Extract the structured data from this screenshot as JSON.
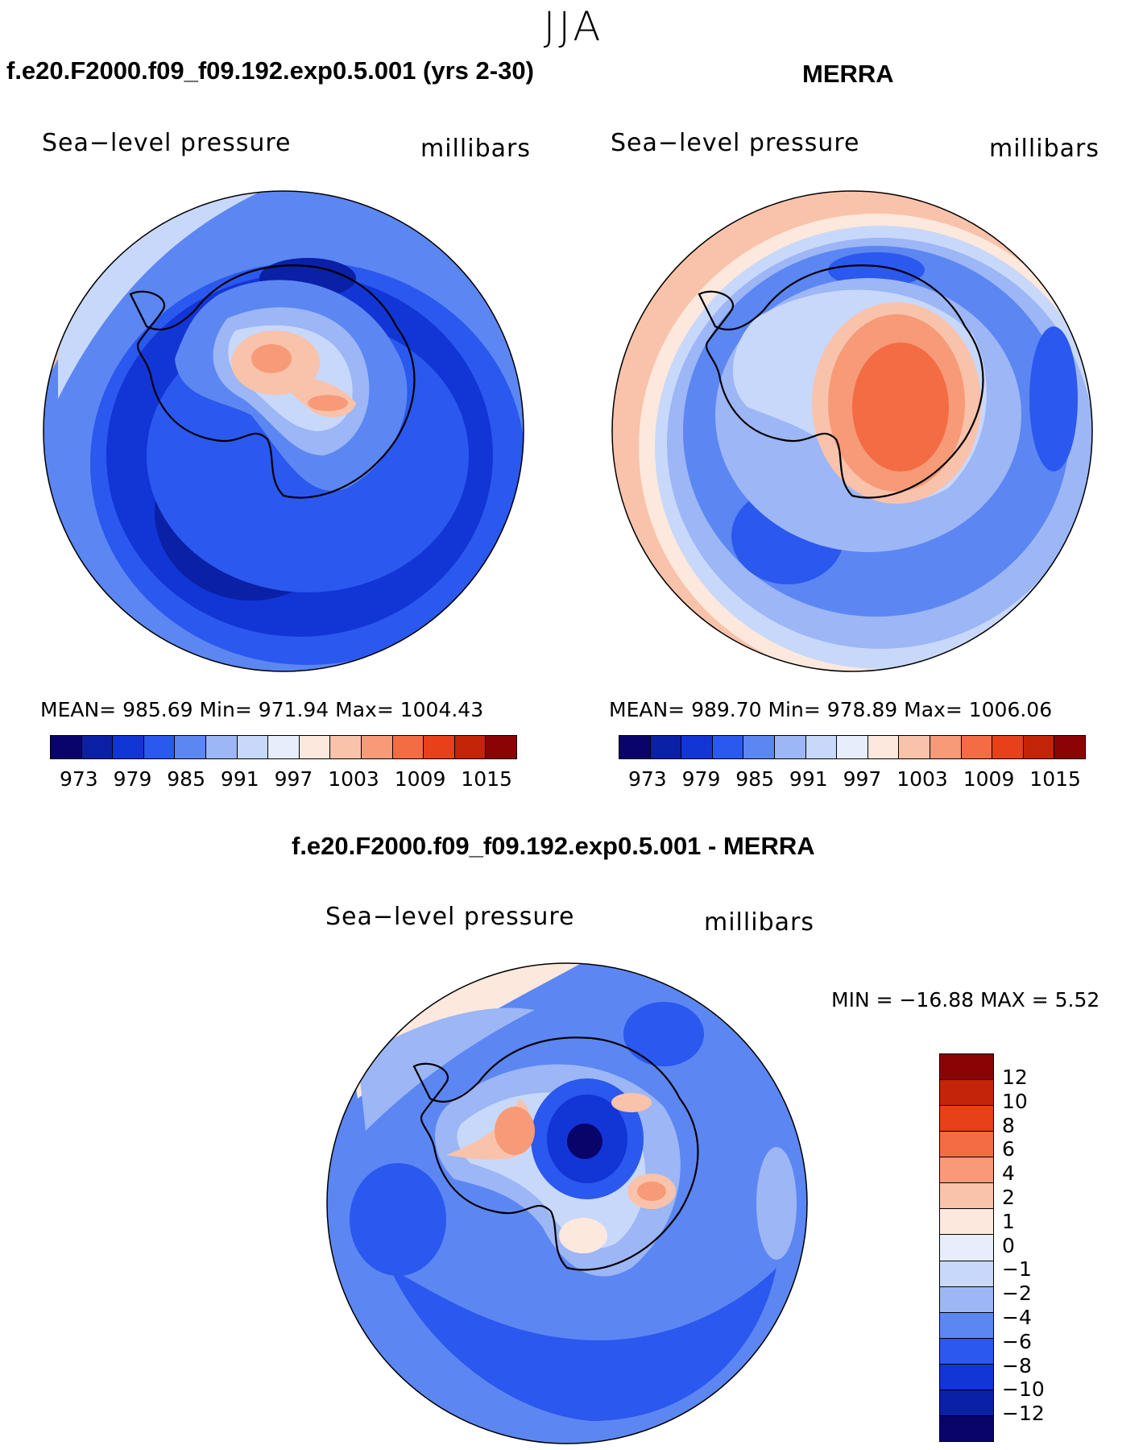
{
  "season": "JJA",
  "panels": {
    "model": {
      "title": "f.e20.F2000.f09_f09.192.exp0.5.001 (yrs 2-30)",
      "variable": "Sea−level pressure",
      "units": "millibars",
      "stats": "MEAN=  985.69   Min=  971.94   Max=  1004.43"
    },
    "obs": {
      "title": "MERRA",
      "variable": "Sea−level pressure",
      "units": "millibars",
      "stats": "MEAN=  989.70   Min=  978.89   Max=  1006.06"
    },
    "diff": {
      "title": "f.e20.F2000.f09_f09.192.exp0.5.001 - MERRA",
      "variable": "Sea−level pressure",
      "units": "millibars",
      "stats": "MIN  =  −16.88  MAX  =     5.52"
    }
  },
  "colorbar_top": {
    "ticks": [
      "973",
      "979",
      "985",
      "991",
      "997",
      "1003",
      "1009",
      "1015"
    ],
    "colors": [
      "#08046a",
      "#0a20a6",
      "#1235d6",
      "#2b58ee",
      "#5c86f2",
      "#9cb6f6",
      "#c8d8fa",
      "#e6eefc",
      "#fce8dc",
      "#f9c2aa",
      "#f79a78",
      "#f46c44",
      "#e84018",
      "#c42408",
      "#8a0404"
    ]
  },
  "colorbar_diff": {
    "ticks": [
      "12",
      "10",
      "8",
      "6",
      "4",
      "2",
      "1",
      "0",
      "−1",
      "−2",
      "−4",
      "−6",
      "−8",
      "−10",
      "−12"
    ],
    "colors": [
      "#8a0404",
      "#c42408",
      "#e84018",
      "#f46c44",
      "#f79a78",
      "#f9c2aa",
      "#fce8dc",
      "#e6eefc",
      "#c8d8fa",
      "#9cb6f6",
      "#5c86f2",
      "#2b58ee",
      "#1235d6",
      "#0a20a6",
      "#08046a"
    ]
  }
}
